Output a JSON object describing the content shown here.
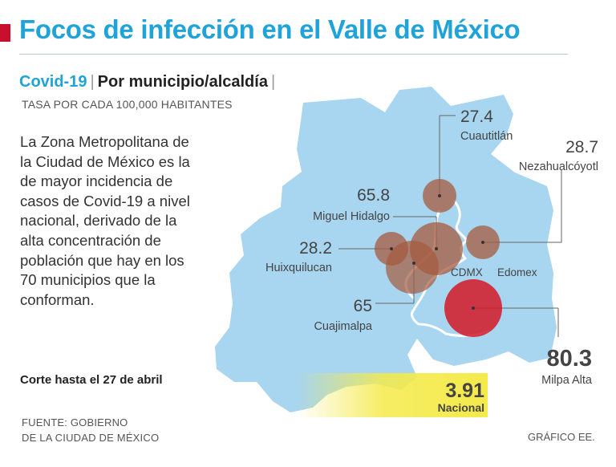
{
  "header": {
    "title": "Focos de infección en el Valle de México",
    "subtitle_a": "Covid-19",
    "subtitle_b": "Por municipio/alcaldía",
    "rate_note": "TASA POR CADA 100,000 HABITANTES"
  },
  "body": {
    "text": "La Zona Metropolitana de la Ciudad de México es la de mayor incidencia de casos de Covid-19 a nivel nacional, derivado de la alta concentración de población que hay en los 70 municipios que la conforman.",
    "cutoff": "Corte hasta el 27 de abril"
  },
  "map": {
    "region_labels": {
      "cdmx": "CDMX",
      "edomex": "Edomex"
    },
    "points": [
      {
        "name": "Cuautitlán",
        "value": "27.4"
      },
      {
        "name": "Nezahualcóyotl",
        "value": "28.7"
      },
      {
        "name": "Miguel Hidalgo",
        "value": "65.8"
      },
      {
        "name": "Huixquilucan",
        "value": "28.2"
      },
      {
        "name": "Cuajimalpa",
        "value": "65"
      },
      {
        "name": "Milpa Alta",
        "value": "80.3"
      }
    ],
    "national": {
      "value": "3.91",
      "label": "Nacional"
    }
  },
  "footer": {
    "source_line1": "FUENTE: GOBIERNO",
    "source_line2": "DE LA CIUDAD DE MÉXICO",
    "credit": "GRÁFICO EE."
  },
  "colors": {
    "accent": "#1fa3d8",
    "map_fill": "#a8d5ef",
    "bubble": "#a55a3f",
    "highlight": "#d31f2c",
    "national_yellow": "#f4ea4a"
  }
}
